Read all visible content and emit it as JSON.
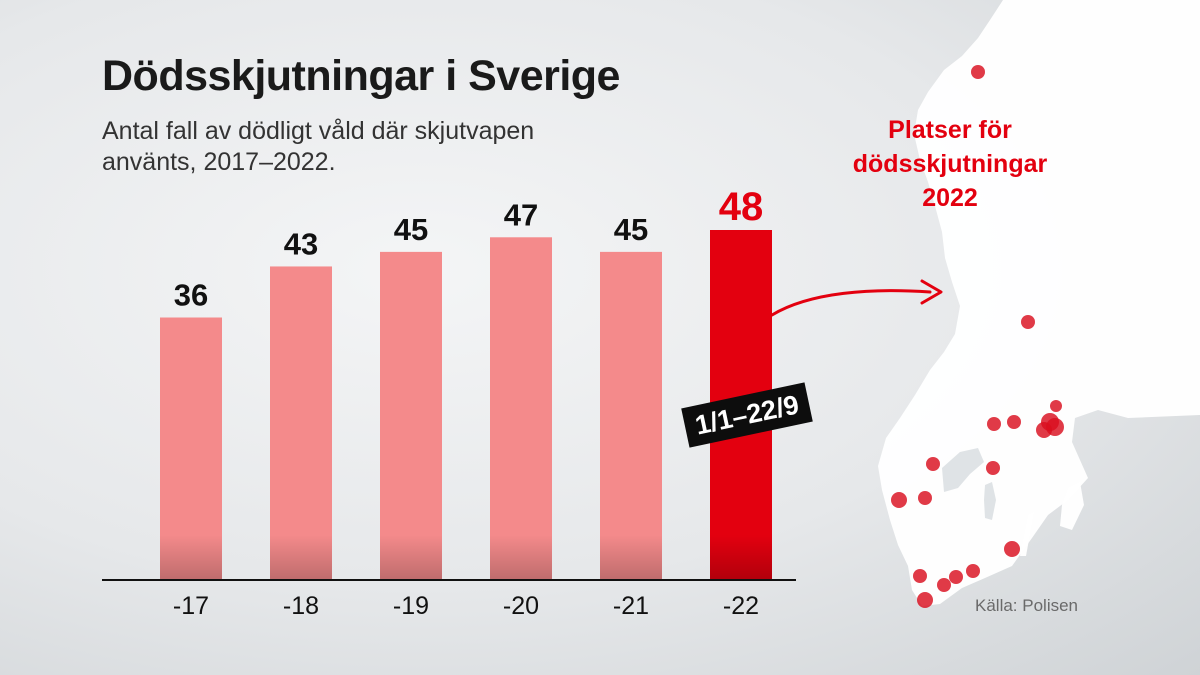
{
  "header": {
    "title": "Dödsskjutningar i Sverige",
    "subtitle": "Antal fall av dödligt våld där skjutvapen använts, 2017–2022."
  },
  "map": {
    "caption_lines": [
      "Platser för",
      "dödsskjutningar",
      "2022"
    ]
  },
  "badge": {
    "text": "1/1–22/9"
  },
  "source": {
    "text": "Källa: Polisen"
  },
  "colors": {
    "bar": "#f48a8b",
    "bar_highlight": "#e3000f",
    "highlight_text": "#e3000f",
    "text": "#111111",
    "dot": "#d90f1f",
    "map_land": "#ffffff"
  },
  "chart_data": {
    "type": "bar",
    "title": "Dödsskjutningar i Sverige",
    "subtitle": "Antal fall av dödligt våld där skjutvapen använts, 2017–2022.",
    "categories": [
      "-17",
      "-18",
      "-19",
      "-20",
      "-21",
      "-22"
    ],
    "values": [
      36,
      43,
      45,
      47,
      45,
      48
    ],
    "value_labels": [
      "36",
      "43",
      "45",
      "47",
      "45",
      "48"
    ],
    "highlight_index": 5,
    "highlight_note": "1/1–22/9",
    "ylim": [
      0,
      48
    ],
    "grid": false,
    "legend": "none"
  }
}
